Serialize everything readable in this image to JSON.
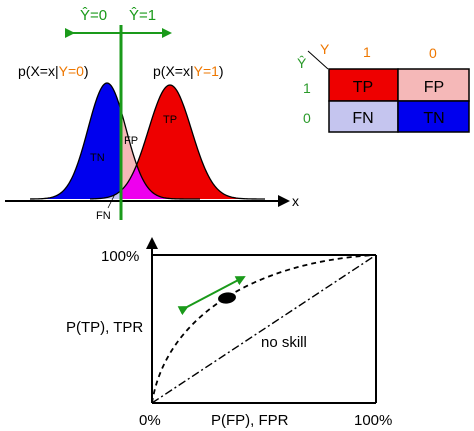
{
  "colors": {
    "tp": "#ee0000",
    "fp": "#f5b8b8",
    "fn": "#c5c5ef",
    "tn": "#0000ee",
    "overlap": "#ee00ee",
    "threshold": "#1a9a1a",
    "y_orange": "#ee7700",
    "yhat_green": "#2a9a2a",
    "black": "#000000"
  },
  "distributions": {
    "threshold_labels": {
      "yhat0": "Ŷ=0",
      "yhat1": "Ŷ=1"
    },
    "neg_label": {
      "prefix": "p(X=x|",
      "cond": "Y=0",
      "suffix": ")"
    },
    "pos_label": {
      "prefix": "p(X=x|",
      "cond": "Y=1",
      "suffix": ")"
    },
    "regions": {
      "tp": "TP",
      "fp": "FP",
      "tn": "TN",
      "fn": "FN"
    },
    "x_axis_label": "x"
  },
  "confusion_matrix": {
    "y_header": "Y",
    "yhat_header": "Ŷ",
    "col_labels": [
      "1",
      "0"
    ],
    "row_labels": [
      "1",
      "0"
    ],
    "cells": [
      [
        {
          "label": "TP",
          "color": "#ee0000"
        },
        {
          "label": "FP",
          "color": "#f5b8b8"
        }
      ],
      [
        {
          "label": "FN",
          "color": "#c5c5ef"
        },
        {
          "label": "TN",
          "color": "#0000ee"
        }
      ]
    ]
  },
  "roc": {
    "y_top_label": "100%",
    "y_axis_label": "P(TP), TPR",
    "x_axis_label": "P(FP), FPR",
    "x_min_label": "0%",
    "x_max_label": "100%",
    "no_skill_label": "no skill"
  }
}
